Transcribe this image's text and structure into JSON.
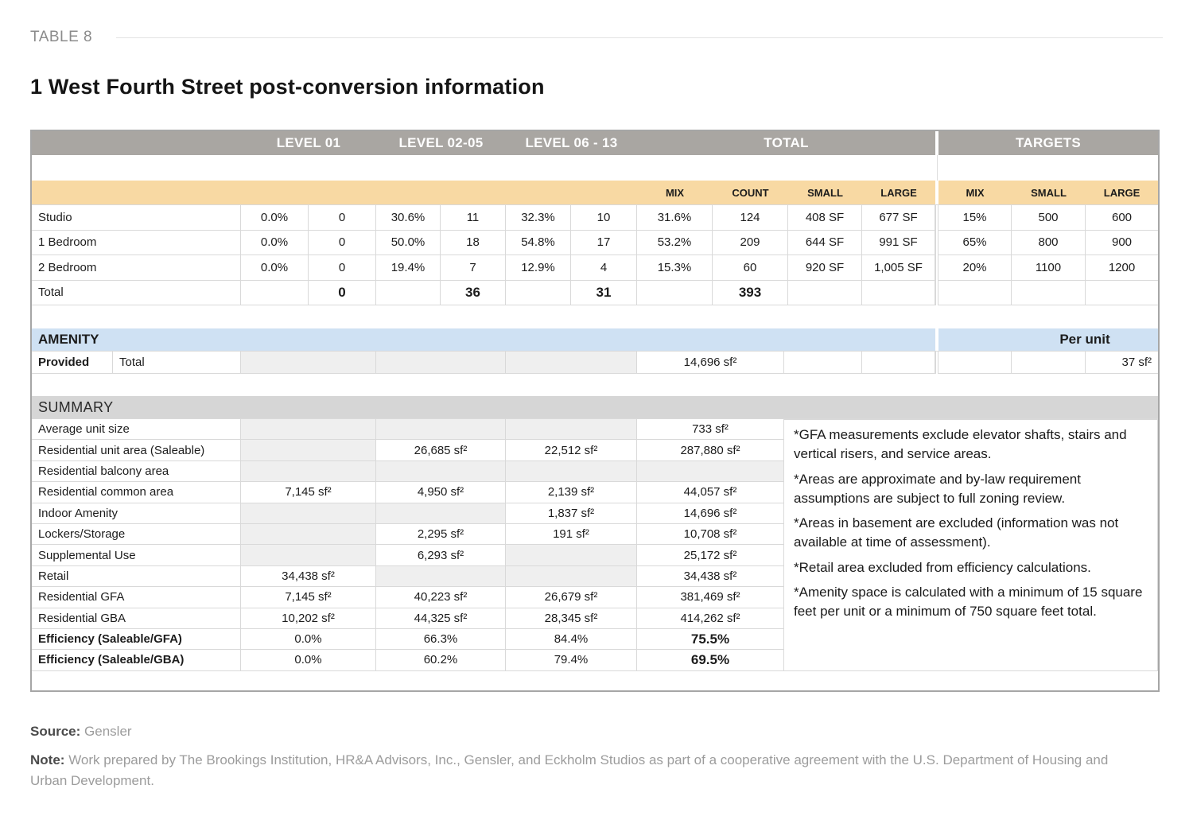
{
  "page": {
    "kicker": "TABLE 8",
    "title": "1 West Fourth Street post-conversion information",
    "source_label": "Source:",
    "source_value": "Gensler",
    "note_label": "Note:",
    "note_value": "Work prepared by The Brookings Institution, HR&A Advisors, Inc., Gensler, and Eckholm Studios as part of a cooperative agreement with the U.S. Department of Housing and Urban Development."
  },
  "table": {
    "level_headers": [
      "LEVEL 01",
      "LEVEL 02-05",
      "LEVEL 06 - 13",
      "TOTAL",
      "TARGETS"
    ],
    "sub_total": [
      "MIX",
      "COUNT",
      "SMALL",
      "LARGE"
    ],
    "sub_targets": [
      "MIX",
      "SMALL",
      "LARGE"
    ],
    "unit_rows": [
      {
        "label": "Studio",
        "cells": [
          "0.0%",
          "0",
          "30.6%",
          "11",
          "32.3%",
          "10",
          "31.6%",
          "124",
          "408 SF",
          "677 SF",
          "15%",
          "500",
          "600"
        ]
      },
      {
        "label": "1 Bedroom",
        "cells": [
          "0.0%",
          "0",
          "50.0%",
          "18",
          "54.8%",
          "17",
          "53.2%",
          "209",
          "644 SF",
          "991 SF",
          "65%",
          "800",
          "900"
        ]
      },
      {
        "label": "2 Bedroom",
        "cells": [
          "0.0%",
          "0",
          "19.4%",
          "7",
          "12.9%",
          "4",
          "15.3%",
          "60",
          "920 SF",
          "1,005 SF",
          "20%",
          "1100",
          "1200"
        ]
      }
    ],
    "total_row": {
      "label": "Total",
      "l01": "0",
      "l0205": "36",
      "l0613": "31",
      "total": "393"
    },
    "amenity": {
      "section_label": "AMENITY",
      "per_unit_label": "Per unit",
      "row_label": "Provided",
      "row_sublabel": "Total",
      "total_value": "14,696 sf²",
      "per_unit_value": "37 sf²"
    },
    "summary": {
      "section_label": "SUMMARY",
      "rows": [
        {
          "label": "Average unit size",
          "l01": "",
          "l0205": "",
          "l0613": "",
          "total": "733 sf²"
        },
        {
          "label": "Residential unit area (Saleable)",
          "l01": "",
          "l0205": "26,685 sf²",
          "l0613": "22,512 sf²",
          "total": "287,880 sf²"
        },
        {
          "label": "Residential balcony area",
          "l01": "",
          "l0205": "",
          "l0613": "",
          "total": ""
        },
        {
          "label": "Residential common area",
          "l01": "7,145 sf²",
          "l0205": "4,950 sf²",
          "l0613": "2,139 sf²",
          "total": "44,057 sf²"
        },
        {
          "label": "Indoor Amenity",
          "l01": "",
          "l0205": "",
          "l0613": "1,837 sf²",
          "total": "14,696 sf²"
        },
        {
          "label": "Lockers/Storage",
          "l01": "",
          "l0205": "2,295 sf²",
          "l0613": "191 sf²",
          "total": "10,708 sf²"
        },
        {
          "label": "Supplemental Use",
          "l01": "",
          "l0205": "6,293 sf²",
          "l0613": "",
          "total": "25,172 sf²"
        },
        {
          "label": "Retail",
          "l01": "34,438 sf²",
          "l0205": "",
          "l0613": "",
          "total": "34,438 sf²"
        },
        {
          "label": "Residential GFA",
          "l01": "7,145 sf²",
          "l0205": "40,223 sf²",
          "l0613": "26,679 sf²",
          "total": "381,469 sf²"
        },
        {
          "label": "Residential GBA",
          "l01": "10,202 sf²",
          "l0205": "44,325 sf²",
          "l0613": "28,345 sf²",
          "total": "414,262 sf²"
        },
        {
          "label": "Efficiency (Saleable/GFA)",
          "l01": "0.0%",
          "l0205": "66.3%",
          "l0613": "84.4%",
          "total": "75.5%"
        },
        {
          "label": "Efficiency (Saleable/GBA)",
          "l01": "0.0%",
          "l0205": "60.2%",
          "l0613": "79.4%",
          "total": "69.5%"
        }
      ],
      "notes": [
        "*GFA measurements exclude elevator shafts, stairs and vertical risers, and service areas.",
        "*Areas are approximate and by-law requirement assumptions are subject to full zoning review.",
        "*Areas in basement are excluded (information was not available at time of assessment).",
        "*Retail area excluded from efficiency calculations.",
        "*Amenity space is calculated with a minimum of 15 square feet per unit or a minimum of 750 square feet total."
      ]
    }
  },
  "colors": {
    "band": "#a9a6a2",
    "orange": "#f8d9a3",
    "blue": "#cfe1f3",
    "sumband": "#d6d6d6",
    "shade": "#efefef",
    "grid": "#d9d9d9",
    "frame": "#a6a6a6"
  }
}
